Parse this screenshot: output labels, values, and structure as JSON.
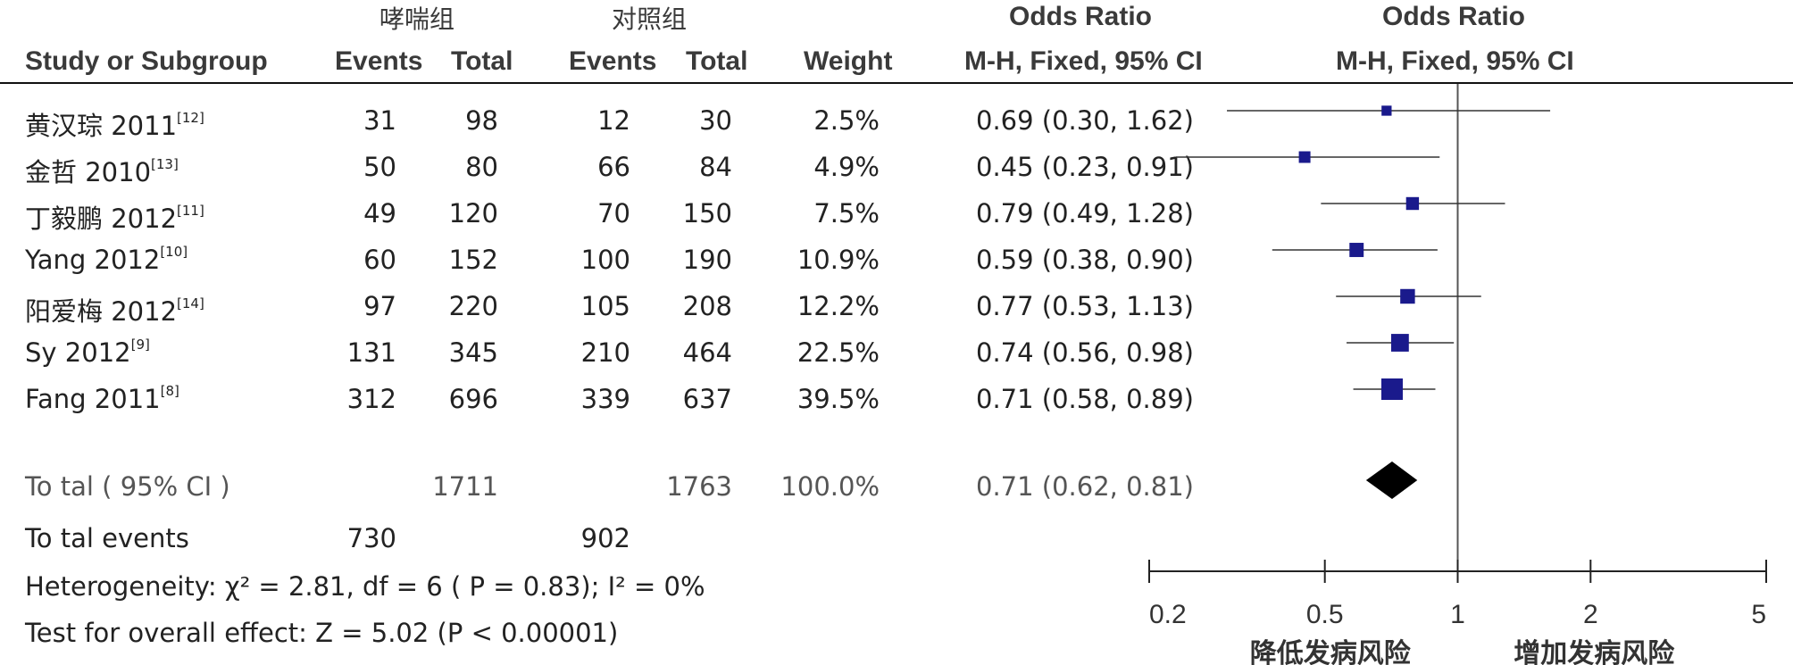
{
  "group_headers": {
    "exp": "哮喘组",
    "ctrl": "对照组",
    "or_col": "Odds Ratio",
    "or_plot": "Odds Ratio"
  },
  "columns": {
    "study": "Study or Subgroup",
    "exp_events": "Events",
    "exp_total": "Total",
    "ctrl_events": "Events",
    "ctrl_total": "Total",
    "weight": "Weight",
    "or_col_method": "M-H, Fixed, 95% CI",
    "or_plot_method": "M-H, Fixed, 95% CI"
  },
  "studies": [
    {
      "name": "黄汉琮 2011",
      "ref": "[12]",
      "e_events": "31",
      "e_total": "98",
      "c_events": "12",
      "c_total": "30",
      "weight": "2.5%",
      "or_text": "0.69 (0.30, 1.62)"
    },
    {
      "name": "金哲 2010",
      "ref": "[13]",
      "e_events": "50",
      "e_total": "80",
      "c_events": "66",
      "c_total": "84",
      "weight": "4.9%",
      "or_text": "0.45 (0.23, 0.91)"
    },
    {
      "name": "丁毅鹏 2012",
      "ref": "[11]",
      "e_events": "49",
      "e_total": "120",
      "c_events": "70",
      "c_total": "150",
      "weight": "7.5%",
      "or_text": "0.79 (0.49, 1.28)"
    },
    {
      "name": "Yang 2012",
      "ref": "[10]",
      "e_events": "60",
      "e_total": "152",
      "c_events": "100",
      "c_total": "190",
      "weight": "10.9%",
      "or_text": "0.59 (0.38, 0.90)"
    },
    {
      "name": "阳爱梅 2012",
      "ref": "[14]",
      "e_events": "97",
      "e_total": "220",
      "c_events": "105",
      "c_total": "208",
      "weight": "12.2%",
      "or_text": "0.77 (0.53, 1.13)"
    },
    {
      "name": "Sy 2012",
      "ref": "[9]",
      "e_events": "131",
      "e_total": "345",
      "c_events": "210",
      "c_total": "464",
      "weight": "22.5%",
      "or_text": "0.74 (0.56, 0.98)"
    },
    {
      "name": "Fang 2011",
      "ref": "[8]",
      "e_events": "312",
      "e_total": "696",
      "c_events": "339",
      "c_total": "637",
      "weight": "39.5%",
      "or_text": "0.71 (0.58, 0.89)"
    }
  ],
  "total": {
    "label": "To tal ( 95% CI )",
    "e_total": "1711",
    "c_total": "1763",
    "weight": "100.0%",
    "or_text": "0.71 (0.62, 0.81)"
  },
  "total_events": {
    "label": "To tal events",
    "e_events": "730",
    "c_events": "902"
  },
  "heterogeneity": "Heterogeneity:  χ² = 2.81, df = 6 (  P = 0.83); I² = 0%",
  "overall_effect": "Test for overall effect: Z = 5.02 (P < 0.00001)",
  "axis": {
    "ticks": [
      "0.2",
      "0.5",
      "1",
      "2",
      "5"
    ],
    "left_label": "降低发病风险",
    "right_label": "增加发病风险"
  },
  "chart_data": {
    "type": "forest",
    "scale": "log",
    "xlim": [
      0.2,
      5
    ],
    "reference_line": 1,
    "x_ticks": [
      0.2,
      0.5,
      1,
      2,
      5
    ],
    "left_label": "降低发病风险",
    "right_label": "增加发病风险",
    "studies": [
      {
        "name": "黄汉琮 2011",
        "or": 0.69,
        "lo": 0.3,
        "hi": 1.62,
        "weight": 2.5
      },
      {
        "name": "金哲 2010",
        "or": 0.45,
        "lo": 0.23,
        "hi": 0.91,
        "weight": 4.9
      },
      {
        "name": "丁毅鹏 2012",
        "or": 0.79,
        "lo": 0.49,
        "hi": 1.28,
        "weight": 7.5
      },
      {
        "name": "Yang 2012",
        "or": 0.59,
        "lo": 0.38,
        "hi": 0.9,
        "weight": 10.9
      },
      {
        "name": "阳爱梅 2012",
        "or": 0.77,
        "lo": 0.53,
        "hi": 1.13,
        "weight": 12.2
      },
      {
        "name": "Sy 2012",
        "or": 0.74,
        "lo": 0.56,
        "hi": 0.98,
        "weight": 22.5
      },
      {
        "name": "Fang 2011",
        "or": 0.71,
        "lo": 0.58,
        "hi": 0.89,
        "weight": 39.5
      }
    ],
    "pooled": {
      "name": "Total (95% CI)",
      "or": 0.71,
      "lo": 0.62,
      "hi": 0.81
    },
    "square_color": "#1a1a8c",
    "diamond_color": "#000000"
  }
}
